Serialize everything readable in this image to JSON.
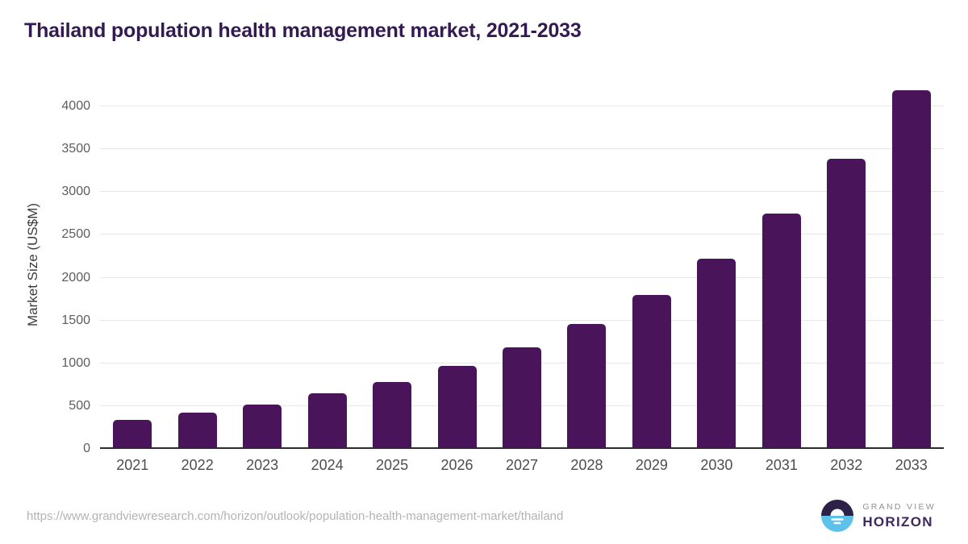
{
  "page": {
    "title": "Thailand population health management market, 2021-2033",
    "source_url": "https://www.grandviewresearch.com/horizon/outlook/population-health-management-market/thailand"
  },
  "chart_data": {
    "type": "bar",
    "title": "Thailand population health management market, 2021-2033",
    "categories": [
      "2021",
      "2022",
      "2023",
      "2024",
      "2025",
      "2026",
      "2027",
      "2028",
      "2029",
      "2030",
      "2031",
      "2032",
      "2033"
    ],
    "values": [
      340,
      425,
      520,
      645,
      785,
      965,
      1190,
      1460,
      1800,
      2225,
      2745,
      3385,
      4185
    ],
    "xlabel": "",
    "ylabel": "Market Size (US$M)",
    "ylim": [
      0,
      4000
    ],
    "yticks": [
      0,
      500,
      1000,
      1500,
      2000,
      2500,
      3000,
      3500,
      4000
    ],
    "grid": "horizontal",
    "legend": "none",
    "bar_color": "#4a145a"
  },
  "branding": {
    "logo_line1": "GRAND VIEW",
    "logo_line2": "HORIZON",
    "logo_icon": "horizon-sun-icon"
  },
  "colors": {
    "title": "#331a50",
    "bar": "#4a145a",
    "axis_line": "#2b2b2b",
    "gridline": "#e7e7e7",
    "y_tick_label": "#5d5d5d",
    "x_tick_label": "#4d4d4d",
    "axis_title": "#3c3c3c",
    "url_text": "#b3b3b3",
    "logo_dark": "#2d2147",
    "logo_blue": "#5ec1ea",
    "logo_gray_text": "#8d929b",
    "logo_horizon_text": "#3a2b5c",
    "background": "#ffffff"
  }
}
